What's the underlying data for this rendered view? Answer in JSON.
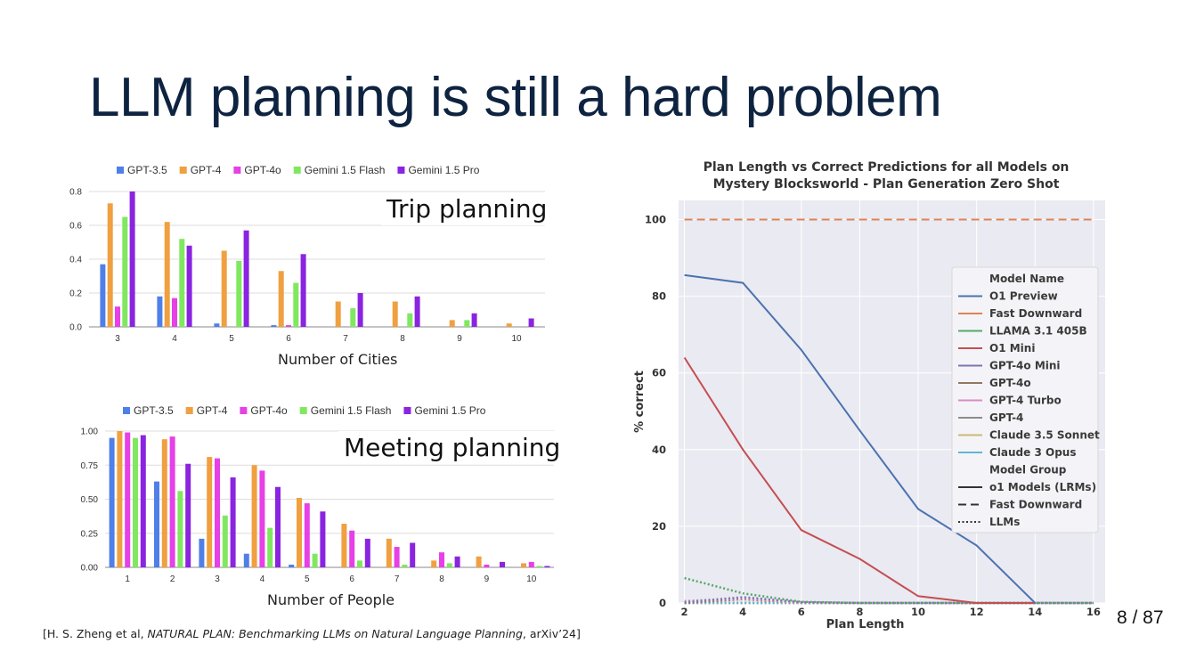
{
  "slide": {
    "title": "LLM planning is still a hard problem",
    "page_number": "8 / 87",
    "citation_prefix": "[H. S. Zheng et al, ",
    "citation_italic": "NATURAL PLAN: Benchmarking LLMs on Natural Language Planning",
    "citation_suffix": ", arXiv’24]"
  },
  "colors": {
    "gpt35": "#4f7fe8",
    "gpt4": "#f0a040",
    "gpt4o": "#e640e6",
    "gemini_flash": "#80e860",
    "gemini_pro": "#8a24e0"
  },
  "chart_data": [
    {
      "type": "bar",
      "id": "trip",
      "overlay_label": "Trip planning",
      "xlabel": "Number of Cities",
      "categories": [
        "3",
        "4",
        "5",
        "6",
        "7",
        "8",
        "9",
        "10"
      ],
      "yticks": [
        "0.0",
        "0.2",
        "0.4",
        "0.6",
        "0.8"
      ],
      "ylim": [
        0,
        0.8
      ],
      "legend_position": "top",
      "grid": true,
      "series": [
        {
          "name": "GPT-3.5",
          "color": "#4f7fe8",
          "values": [
            0.37,
            0.18,
            0.02,
            0.01,
            0,
            0,
            0,
            0
          ]
        },
        {
          "name": "GPT-4",
          "color": "#f0a040",
          "values": [
            0.73,
            0.62,
            0.45,
            0.33,
            0.15,
            0.15,
            0.04,
            0.02
          ]
        },
        {
          "name": "GPT-4o",
          "color": "#e640e6",
          "values": [
            0.12,
            0.17,
            0,
            0.01,
            0,
            0,
            0,
            0
          ]
        },
        {
          "name": "Gemini 1.5 Flash",
          "color": "#80e860",
          "values": [
            0.65,
            0.52,
            0.39,
            0.26,
            0.11,
            0.08,
            0.04,
            0
          ]
        },
        {
          "name": "Gemini 1.5 Pro",
          "color": "#8a24e0",
          "values": [
            0.8,
            0.48,
            0.57,
            0.43,
            0.2,
            0.18,
            0.08,
            0.05
          ]
        }
      ]
    },
    {
      "type": "bar",
      "id": "meeting",
      "overlay_label": "Meeting planning",
      "xlabel": "Number of People",
      "categories": [
        "1",
        "2",
        "3",
        "4",
        "5",
        "6",
        "7",
        "8",
        "9",
        "10"
      ],
      "yticks": [
        "0.00",
        "0.25",
        "0.50",
        "0.75",
        "1.00"
      ],
      "ylim": [
        0,
        1.0
      ],
      "legend_position": "top",
      "grid": true,
      "series": [
        {
          "name": "GPT-3.5",
          "color": "#4f7fe8",
          "values": [
            0.95,
            0.63,
            0.21,
            0.1,
            0.02,
            0,
            0,
            0,
            0,
            0
          ]
        },
        {
          "name": "GPT-4",
          "color": "#f0a040",
          "values": [
            1.0,
            0.94,
            0.81,
            0.75,
            0.51,
            0.32,
            0.21,
            0.05,
            0.08,
            0.03
          ]
        },
        {
          "name": "GPT-4o",
          "color": "#e640e6",
          "values": [
            0.99,
            0.96,
            0.8,
            0.71,
            0.47,
            0.27,
            0.15,
            0.11,
            0.02,
            0.04
          ]
        },
        {
          "name": "Gemini 1.5 Flash",
          "color": "#80e860",
          "values": [
            0.95,
            0.56,
            0.38,
            0.29,
            0.1,
            0.05,
            0.02,
            0.03,
            0,
            0.01
          ]
        },
        {
          "name": "Gemini 1.5 Pro",
          "color": "#8a24e0",
          "values": [
            0.97,
            0.76,
            0.66,
            0.59,
            0.41,
            0.21,
            0.18,
            0.08,
            0.04,
            0.01
          ]
        }
      ]
    },
    {
      "type": "line",
      "id": "blocksworld",
      "title_line1": "Plan Length vs Correct Predictions for all Models on",
      "title_line2": "Mystery Blocksworld - Plan Generation Zero Shot",
      "xlabel": "Plan Length",
      "ylabel": "% correct",
      "xticks": [
        "2",
        "4",
        "6",
        "8",
        "10",
        "12",
        "14",
        "16"
      ],
      "yticks": [
        "0",
        "20",
        "40",
        "60",
        "80",
        "100"
      ],
      "xlim": [
        1.8,
        16.4
      ],
      "ylim": [
        0,
        105
      ],
      "legend_position": "right",
      "legend_title": "Model Name",
      "legend_group_title": "Model Group",
      "series": [
        {
          "name": "O1 Preview",
          "color": "#4c72b0",
          "style": "solid",
          "x": [
            2,
            4,
            6,
            8,
            10,
            12,
            14
          ],
          "y": [
            85.5,
            83.5,
            66,
            45,
            24.5,
            15,
            0
          ]
        },
        {
          "name": "Fast Downward",
          "color": "#dd8452",
          "style": "dashed",
          "x": [
            2,
            16
          ],
          "y": [
            100,
            100
          ]
        },
        {
          "name": "LLAMA 3.1 405B",
          "color": "#55a868",
          "style": "dotted",
          "x": [
            2,
            4,
            6,
            8,
            16
          ],
          "y": [
            6.5,
            2.5,
            0.3,
            0,
            0
          ]
        },
        {
          "name": "O1 Mini",
          "color": "#c44e52",
          "style": "solid",
          "x": [
            2,
            4,
            6,
            8,
            10,
            12,
            14
          ],
          "y": [
            64,
            40,
            19,
            11.5,
            1.8,
            0,
            0
          ]
        },
        {
          "name": "GPT-4o Mini",
          "color": "#8172b3",
          "style": "dotted",
          "x": [
            2,
            4,
            6,
            8,
            16
          ],
          "y": [
            0.2,
            1.5,
            0.2,
            0,
            0
          ]
        },
        {
          "name": "GPT-4o",
          "color": "#937860",
          "style": "dotted",
          "x": [
            2,
            4,
            6,
            16
          ],
          "y": [
            0,
            1,
            0,
            0
          ]
        },
        {
          "name": "GPT-4 Turbo",
          "color": "#da8bc3",
          "style": "dotted",
          "x": [
            2,
            4,
            6,
            16
          ],
          "y": [
            0.5,
            1.2,
            0,
            0
          ]
        },
        {
          "name": "GPT-4",
          "color": "#8c8c8c",
          "style": "dotted",
          "x": [
            2,
            16
          ],
          "y": [
            0,
            0
          ]
        },
        {
          "name": "Claude 3.5 Sonnet",
          "color": "#ccb974",
          "style": "dotted",
          "x": [
            2,
            16
          ],
          "y": [
            0,
            0
          ]
        },
        {
          "name": "Claude 3 Opus",
          "color": "#64b5cd",
          "style": "dotted",
          "x": [
            2,
            16
          ],
          "y": [
            0,
            0
          ]
        }
      ],
      "groups": [
        {
          "name": "o1 Models (LRMs)",
          "style": "solid"
        },
        {
          "name": "Fast Downward",
          "style": "dashed"
        },
        {
          "name": "LLMs",
          "style": "dotted"
        }
      ]
    }
  ]
}
